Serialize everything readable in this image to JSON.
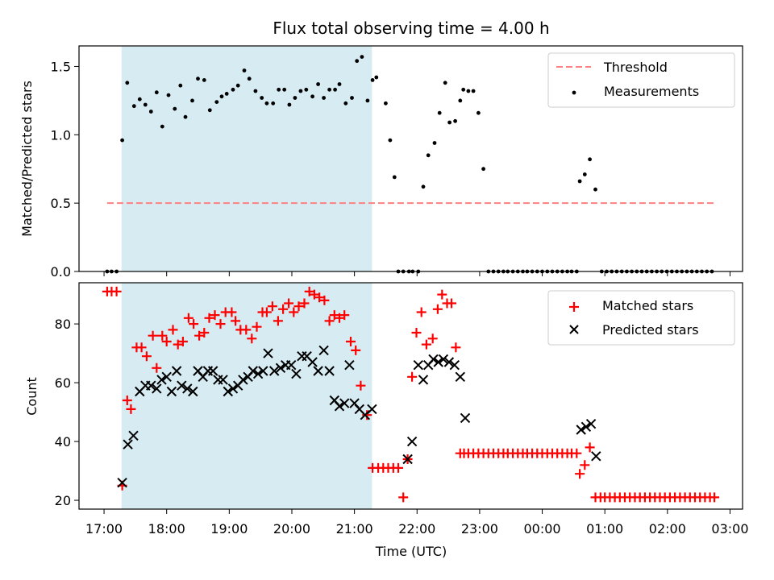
{
  "chart_data": {
    "title": "Flux total observing time = 4.00 h",
    "shaded_region": {
      "x_start": 17.28,
      "x_end": 21.28,
      "color": "#add8e6",
      "opacity": 0.5
    },
    "x_axis": {
      "label": "Time (UTC)",
      "range": [
        16.6,
        27.2
      ],
      "ticks": [
        17,
        18,
        19,
        20,
        21,
        22,
        23,
        24,
        25,
        26,
        27
      ],
      "tick_labels": [
        "17:00",
        "18:00",
        "19:00",
        "20:00",
        "21:00",
        "22:00",
        "23:00",
        "00:00",
        "01:00",
        "02:00",
        "03:00"
      ]
    },
    "panels": [
      {
        "type": "scatter",
        "ylabel": "Matched/Predicted stars",
        "ylim": [
          0,
          1.65
        ],
        "yticks": [
          0.0,
          0.5,
          1.0,
          1.5
        ],
        "ytick_labels": [
          "0.0",
          "0.5",
          "1.0",
          "1.5"
        ],
        "threshold": {
          "name": "Threshold",
          "value": 0.5,
          "x_range": [
            17.05,
            26.75
          ],
          "color": "#ff8080"
        },
        "legend_position": "top-right",
        "series": [
          {
            "name": "Measurements",
            "color": "#000000",
            "marker": "dot",
            "x": [
              17.05,
              17.12,
              17.2,
              17.29,
              17.37,
              17.48,
              17.57,
              17.66,
              17.75,
              17.84,
              17.93,
              18.03,
              18.13,
              18.22,
              18.3,
              18.41,
              18.5,
              18.6,
              18.69,
              18.8,
              18.88,
              18.96,
              19.06,
              19.14,
              19.24,
              19.32,
              19.42,
              19.52,
              19.6,
              19.7,
              19.79,
              19.88,
              19.96,
              20.05,
              20.14,
              20.23,
              20.33,
              20.42,
              20.51,
              20.6,
              20.69,
              20.76,
              20.86,
              20.96,
              21.04,
              21.12,
              21.21,
              21.29,
              21.35,
              21.5,
              21.57,
              21.64,
              21.7,
              21.78,
              21.87,
              21.93,
              22.02,
              22.1,
              22.18,
              22.28,
              22.36,
              22.45,
              22.52,
              22.61,
              22.69,
              22.74,
              22.82,
              22.9,
              22.98,
              23.06,
              23.14,
              23.22,
              23.3,
              23.38,
              23.45,
              23.53,
              23.61,
              23.69,
              23.76,
              23.84,
              23.92,
              24.0,
              24.08,
              24.16,
              24.24,
              24.32,
              24.4,
              24.47,
              24.55,
              24.6,
              24.68,
              24.76,
              24.85,
              24.95,
              25.03,
              25.11,
              25.19,
              25.27,
              25.35,
              25.43,
              25.51,
              25.59,
              25.67,
              25.75,
              25.83,
              25.91,
              25.99,
              26.07,
              26.15,
              26.23,
              26.31,
              26.39,
              26.47,
              26.55,
              26.63,
              26.71
            ],
            "y": [
              0,
              0,
              0,
              0.96,
              1.38,
              1.21,
              1.26,
              1.22,
              1.17,
              1.31,
              1.06,
              1.29,
              1.19,
              1.36,
              1.13,
              1.25,
              1.41,
              1.4,
              1.18,
              1.24,
              1.28,
              1.3,
              1.33,
              1.36,
              1.47,
              1.41,
              1.32,
              1.27,
              1.23,
              1.23,
              1.33,
              1.33,
              1.22,
              1.27,
              1.32,
              1.33,
              1.28,
              1.37,
              1.27,
              1.33,
              1.33,
              1.37,
              1.23,
              1.27,
              1.54,
              1.57,
              1.25,
              1.4,
              1.42,
              1.23,
              0.96,
              0.69,
              0,
              0,
              0,
              0,
              0,
              0.62,
              0.85,
              0.94,
              1.16,
              1.38,
              1.09,
              1.1,
              1.25,
              1.33,
              1.32,
              1.32,
              1.16,
              0.75,
              0,
              0,
              0,
              0,
              0,
              0,
              0,
              0,
              0,
              0,
              0,
              0,
              0,
              0,
              0,
              0,
              0,
              0,
              0,
              0.66,
              0.71,
              0.82,
              0.6,
              0,
              0,
              0,
              0,
              0,
              0,
              0,
              0,
              0,
              0,
              0,
              0,
              0,
              0,
              0,
              0,
              0,
              0,
              0,
              0,
              0,
              0,
              0
            ]
          }
        ]
      },
      {
        "type": "scatter",
        "ylabel": "Count",
        "ylim": [
          17,
          94
        ],
        "yticks": [
          20,
          40,
          60,
          80
        ],
        "ytick_labels": [
          "20",
          "40",
          "60",
          "80"
        ],
        "legend_position": "top-right",
        "series": [
          {
            "name": "Matched stars",
            "color": "#ff0000",
            "marker": "plus",
            "x": [
              17.05,
              17.12,
              17.2,
              17.29,
              17.37,
              17.43,
              17.52,
              17.6,
              17.68,
              17.78,
              17.84,
              17.93,
              18.0,
              18.1,
              18.18,
              18.26,
              18.35,
              18.43,
              18.52,
              18.6,
              18.68,
              18.77,
              18.86,
              18.94,
              19.04,
              19.1,
              19.18,
              19.27,
              19.36,
              19.44,
              19.53,
              19.6,
              19.69,
              19.78,
              19.86,
              19.95,
              20.03,
              20.11,
              20.2,
              20.28,
              20.36,
              20.44,
              20.52,
              20.6,
              20.68,
              20.76,
              20.84,
              20.94,
              21.02,
              21.1,
              21.2,
              21.29,
              21.38,
              21.46,
              21.54,
              21.62,
              21.7,
              21.78,
              21.85,
              21.92,
              21.99,
              22.07,
              22.15,
              22.25,
              22.33,
              22.4,
              22.48,
              22.55,
              22.62,
              22.69,
              22.75,
              22.82,
              22.9,
              22.98,
              23.06,
              23.14,
              23.22,
              23.3,
              23.38,
              23.45,
              23.53,
              23.61,
              23.69,
              23.76,
              23.84,
              23.92,
              24.0,
              24.08,
              24.16,
              24.24,
              24.32,
              24.4,
              24.47,
              24.55,
              24.6,
              24.68,
              24.76,
              24.85,
              24.93,
              25.0,
              25.08,
              25.16,
              25.24,
              25.32,
              25.4,
              25.48,
              25.56,
              25.64,
              25.72,
              25.8,
              25.88,
              25.96,
              26.04,
              26.12,
              26.2,
              26.28,
              26.36,
              26.44,
              26.52,
              26.6,
              26.68,
              26.75
            ],
            "y": [
              91,
              91,
              91,
              25,
              54,
              51,
              72,
              72,
              69,
              76,
              65,
              76,
              74,
              78,
              73,
              74,
              82,
              80,
              76,
              77,
              82,
              83,
              80,
              84,
              84,
              81,
              78,
              78,
              75,
              79,
              84,
              84,
              86,
              81,
              85,
              87,
              84,
              86,
              87,
              91,
              90,
              89,
              88,
              81,
              83,
              82,
              83,
              74,
              71,
              59,
              49,
              31,
              31,
              31,
              31,
              31,
              31,
              21,
              34,
              62,
              77,
              84,
              73,
              75,
              85,
              90,
              87,
              87,
              72,
              36,
              36,
              36,
              36,
              36,
              36,
              36,
              36,
              36,
              36,
              36,
              36,
              36,
              36,
              36,
              36,
              36,
              36,
              36,
              36,
              36,
              36,
              36,
              36,
              36,
              29,
              32,
              38,
              21,
              21,
              21,
              21,
              21,
              21,
              21,
              21,
              21,
              21,
              21,
              21,
              21,
              21,
              21,
              21,
              21,
              21,
              21,
              21,
              21,
              21,
              21,
              21,
              21
            ]
          },
          {
            "name": "Predicted stars",
            "color": "#000000",
            "marker": "x",
            "x": [
              17.29,
              17.38,
              17.47,
              17.57,
              17.66,
              17.75,
              17.84,
              17.92,
              18.0,
              18.08,
              18.16,
              18.24,
              18.33,
              18.42,
              18.5,
              18.58,
              18.66,
              18.74,
              18.82,
              18.9,
              18.98,
              19.06,
              19.14,
              19.22,
              19.3,
              19.38,
              19.46,
              19.54,
              19.62,
              19.72,
              19.82,
              19.9,
              19.99,
              20.07,
              20.16,
              20.24,
              20.33,
              20.42,
              20.51,
              20.6,
              20.68,
              20.76,
              20.84,
              20.92,
              21.0,
              21.08,
              21.17,
              21.28,
              21.85,
              21.92,
              22.02,
              22.1,
              22.18,
              22.26,
              22.34,
              22.42,
              22.51,
              22.6,
              22.69,
              22.77,
              24.62,
              24.7,
              24.78,
              24.86
            ],
            "y": [
              26,
              39,
              42,
              57,
              59,
              59,
              58,
              61,
              62,
              57,
              64,
              59,
              58,
              57,
              64,
              62,
              64,
              64,
              61,
              61,
              57,
              58,
              59,
              61,
              62,
              64,
              63,
              64,
              70,
              64,
              65,
              66,
              66,
              63,
              69,
              69,
              67,
              64,
              71,
              64,
              54,
              52,
              53,
              66,
              53,
              51,
              49,
              51,
              34,
              40,
              66,
              61,
              66,
              68,
              67,
              68,
              67,
              66,
              62,
              48,
              44,
              45,
              46,
              35
            ]
          }
        ]
      }
    ]
  }
}
